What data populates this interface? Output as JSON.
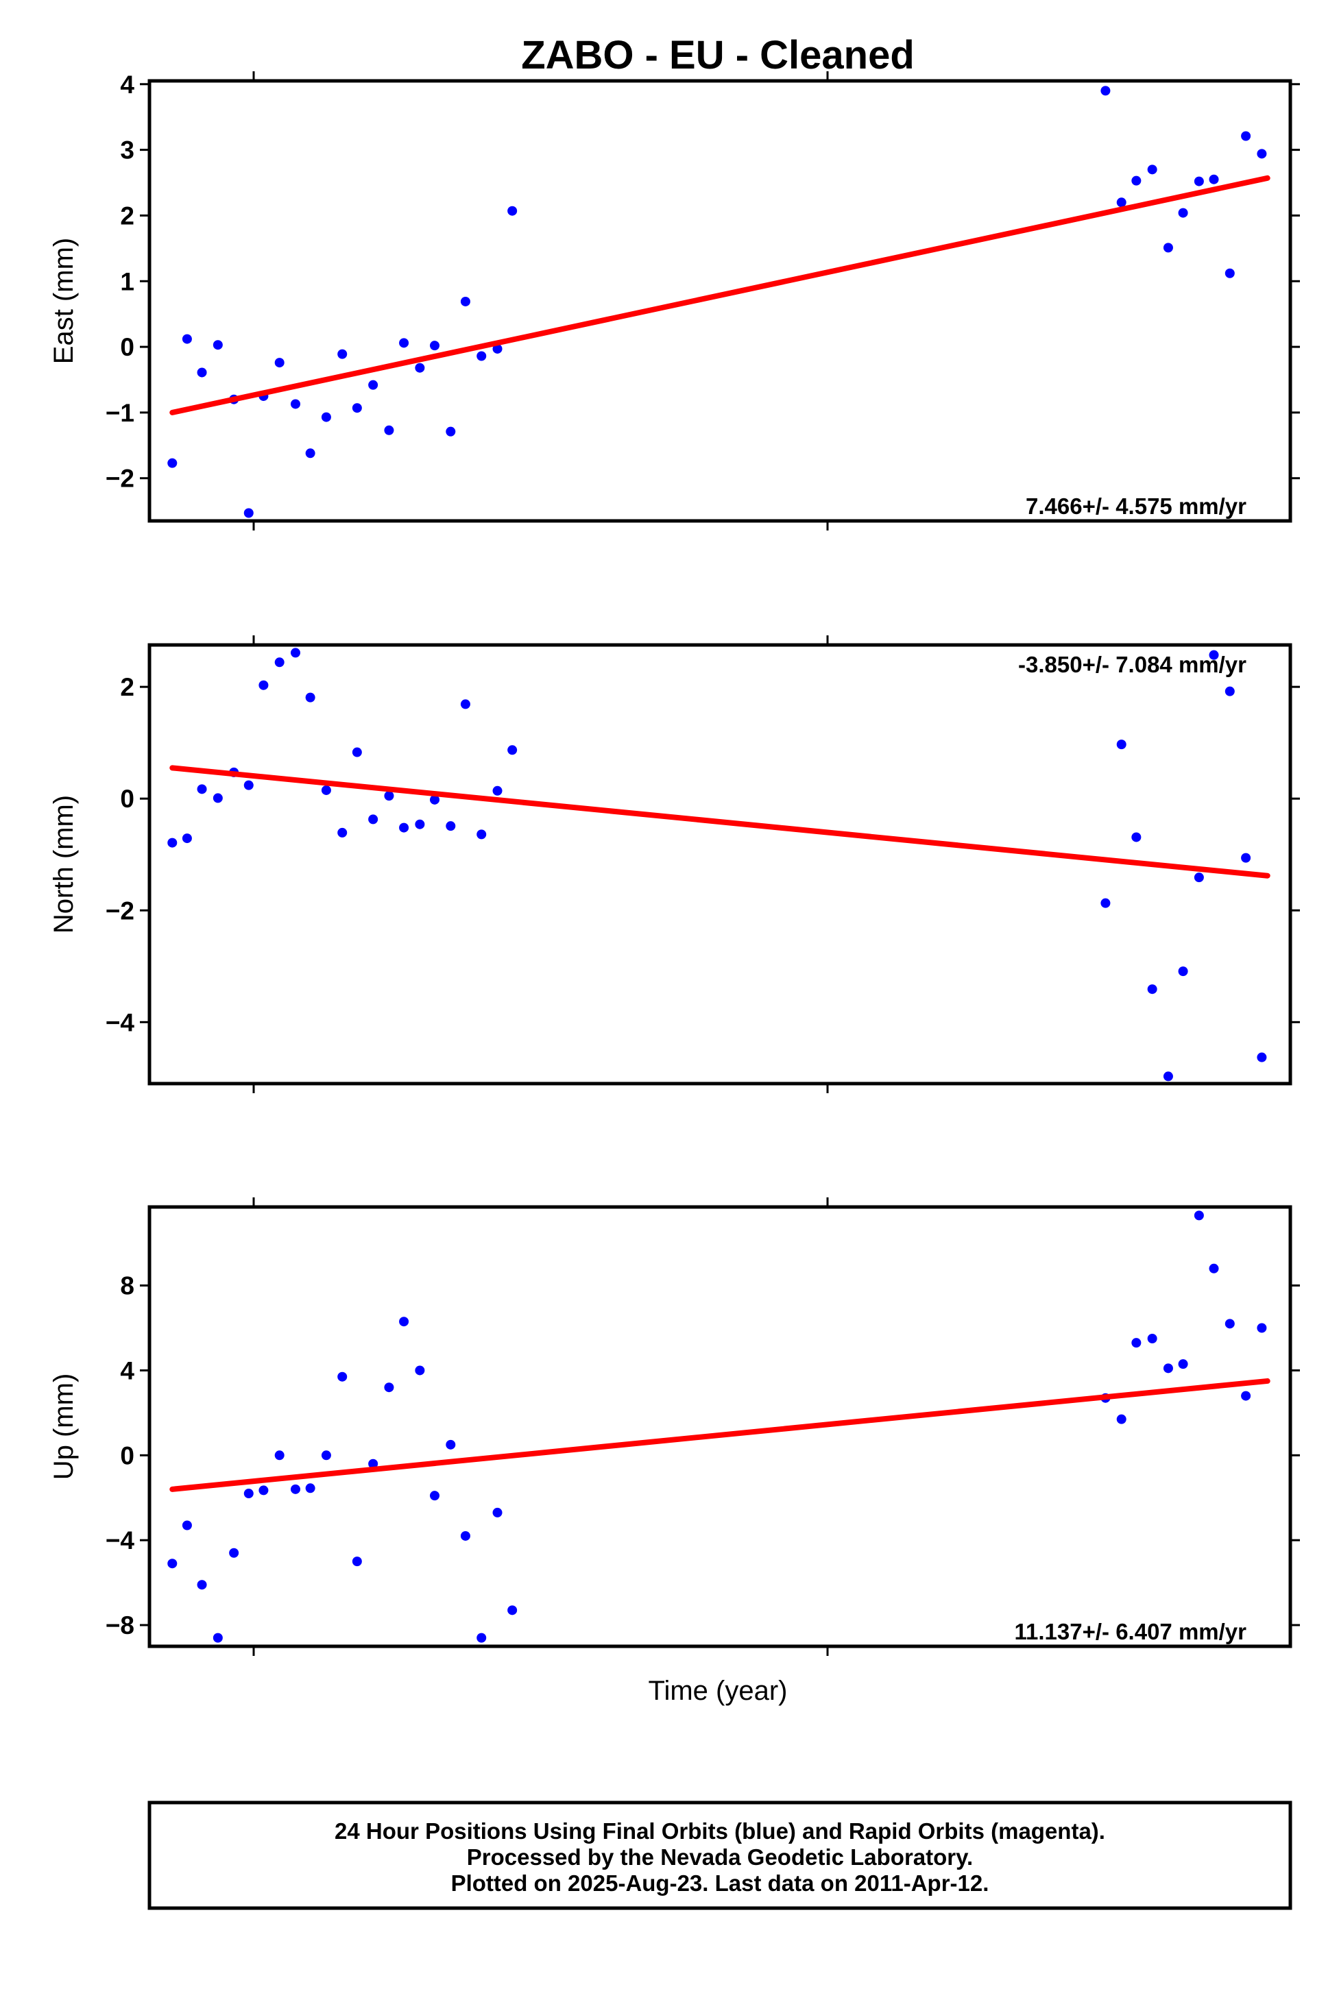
{
  "chart_data": {
    "type": "scatter",
    "title": "ZABO  - EU - Cleaned",
    "xlabel": "Time (year)",
    "fit_color": "#ff0000",
    "point_color": "#0000ff",
    "panels": [
      {
        "name": "east",
        "ylabel": "East (mm)",
        "ylim": [
          -2.65,
          4.05
        ],
        "yticks": [
          4,
          3,
          2,
          1,
          0,
          -1,
          -2
        ],
        "rate": "7.466+/- 4.575 mm/yr",
        "rate_position": "bottom-right",
        "fit": [
          [
            0.02,
            -1.0
          ],
          [
            0.98,
            2.57
          ]
        ],
        "points": [
          [
            0.02,
            -1.77
          ],
          [
            0.033,
            0.12
          ],
          [
            0.046,
            -0.39
          ],
          [
            0.06,
            0.03
          ],
          [
            0.074,
            -0.8
          ],
          [
            0.087,
            -2.53
          ],
          [
            0.1,
            -0.75
          ],
          [
            0.114,
            -0.24
          ],
          [
            0.128,
            -0.87
          ],
          [
            0.141,
            -1.62
          ],
          [
            0.155,
            -1.07
          ],
          [
            0.169,
            -0.11
          ],
          [
            0.182,
            -0.93
          ],
          [
            0.196,
            -0.58
          ],
          [
            0.21,
            -1.27
          ],
          [
            0.223,
            0.06
          ],
          [
            0.237,
            -0.32
          ],
          [
            0.25,
            0.02
          ],
          [
            0.264,
            -1.29
          ],
          [
            0.277,
            0.69
          ],
          [
            0.291,
            -0.14
          ],
          [
            0.305,
            -0.03
          ],
          [
            0.318,
            2.07
          ],
          [
            0.838,
            3.9
          ],
          [
            0.852,
            2.2
          ],
          [
            0.865,
            2.53
          ],
          [
            0.879,
            2.7
          ],
          [
            0.893,
            1.51
          ],
          [
            0.906,
            2.04
          ],
          [
            0.92,
            2.52
          ],
          [
            0.933,
            2.55
          ],
          [
            0.947,
            1.12
          ],
          [
            0.961,
            3.21
          ],
          [
            0.975,
            2.94
          ]
        ]
      },
      {
        "name": "north",
        "ylabel": "North (mm)",
        "ylim": [
          -5.1,
          2.75
        ],
        "yticks": [
          2,
          0,
          -2,
          -4
        ],
        "rate": "-3.850+/- 7.084 mm/yr",
        "rate_position": "top-right",
        "fit": [
          [
            0.02,
            0.55
          ],
          [
            0.98,
            -1.38
          ]
        ],
        "points": [
          [
            0.02,
            -0.79
          ],
          [
            0.033,
            -0.71
          ],
          [
            0.046,
            0.17
          ],
          [
            0.06,
            0.01
          ],
          [
            0.074,
            0.47
          ],
          [
            0.087,
            0.24
          ],
          [
            0.1,
            2.03
          ],
          [
            0.114,
            2.44
          ],
          [
            0.128,
            2.61
          ],
          [
            0.141,
            1.81
          ],
          [
            0.155,
            0.15
          ],
          [
            0.169,
            -0.61
          ],
          [
            0.182,
            0.83
          ],
          [
            0.196,
            -0.37
          ],
          [
            0.21,
            0.05
          ],
          [
            0.223,
            -0.52
          ],
          [
            0.237,
            -0.46
          ],
          [
            0.25,
            -0.02
          ],
          [
            0.264,
            -0.49
          ],
          [
            0.277,
            1.69
          ],
          [
            0.291,
            -0.64
          ],
          [
            0.305,
            0.14
          ],
          [
            0.318,
            0.87
          ],
          [
            0.838,
            -1.87
          ],
          [
            0.852,
            0.97
          ],
          [
            0.865,
            -0.69
          ],
          [
            0.879,
            -3.41
          ],
          [
            0.893,
            -4.97
          ],
          [
            0.906,
            -3.09
          ],
          [
            0.92,
            -1.41
          ],
          [
            0.933,
            2.57
          ],
          [
            0.947,
            1.92
          ],
          [
            0.961,
            -1.06
          ],
          [
            0.975,
            -4.63
          ]
        ]
      },
      {
        "name": "up",
        "ylabel": "Up (mm)",
        "ylim": [
          -9.0,
          11.7
        ],
        "yticks": [
          8,
          4,
          0,
          -4,
          -8
        ],
        "rate": "11.137+/- 6.407 mm/yr",
        "rate_position": "bottom-right",
        "fit": [
          [
            0.02,
            -1.6
          ],
          [
            0.98,
            3.5
          ]
        ],
        "points": [
          [
            0.02,
            -5.1
          ],
          [
            0.033,
            -3.3
          ],
          [
            0.046,
            -6.1
          ],
          [
            0.06,
            -8.6
          ],
          [
            0.074,
            -4.6
          ],
          [
            0.087,
            -1.8
          ],
          [
            0.1,
            -1.65
          ],
          [
            0.114,
            0.0
          ],
          [
            0.128,
            -1.6
          ],
          [
            0.141,
            -1.55
          ],
          [
            0.155,
            0.0
          ],
          [
            0.169,
            3.7
          ],
          [
            0.182,
            -5.0
          ],
          [
            0.196,
            -0.4
          ],
          [
            0.21,
            3.2
          ],
          [
            0.223,
            6.3
          ],
          [
            0.237,
            4.0
          ],
          [
            0.25,
            -1.9
          ],
          [
            0.264,
            0.5
          ],
          [
            0.277,
            -3.8
          ],
          [
            0.291,
            -8.6
          ],
          [
            0.305,
            -2.7
          ],
          [
            0.318,
            -7.3
          ],
          [
            0.838,
            2.7
          ],
          [
            0.852,
            1.7
          ],
          [
            0.865,
            5.3
          ],
          [
            0.879,
            5.5
          ],
          [
            0.893,
            4.1
          ],
          [
            0.906,
            4.3
          ],
          [
            0.92,
            11.3
          ],
          [
            0.933,
            8.8
          ],
          [
            0.947,
            6.2
          ],
          [
            0.961,
            2.8
          ],
          [
            0.975,
            6.0
          ]
        ]
      }
    ],
    "footer": [
      "24 Hour Positions Using Final Orbits (blue) and Rapid Orbits (magenta).",
      "Processed by the Nevada Geodetic Laboratory.",
      "Plotted on 2025-Aug-23. Last data on 2011-Apr-12."
    ]
  }
}
